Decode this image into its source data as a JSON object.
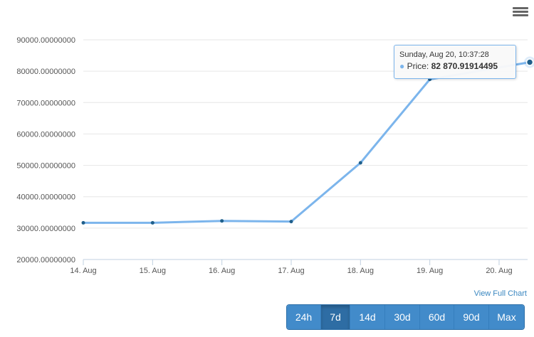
{
  "chart_data": {
    "type": "line",
    "x": [
      "14. Aug",
      "15. Aug",
      "16. Aug",
      "17. Aug",
      "18. Aug",
      "19. Aug",
      "20. Aug"
    ],
    "points": [
      {
        "x": "2023-08-14",
        "y": 31700
      },
      {
        "x": "2023-08-15",
        "y": 31700
      },
      {
        "x": "2023-08-16",
        "y": 32300
      },
      {
        "x": "2023-08-17",
        "y": 32100
      },
      {
        "x": "2023-08-18",
        "y": 50800
      },
      {
        "x": "2023-08-19",
        "y": 77400
      },
      {
        "x": "2023-08-20 10:37:28",
        "y": 82870.91914495
      }
    ],
    "y_ticks": [
      "20000.00000000",
      "30000.00000000",
      "40000.00000000",
      "50000.00000000",
      "60000.00000000",
      "70000.00000000",
      "80000.00000000",
      "90000.00000000"
    ],
    "ylim": [
      20000,
      90000
    ],
    "grid": true,
    "series_color": "#7cb5ec",
    "marker_color": "#1f5f8b"
  },
  "tooltip": {
    "date": "Sunday, Aug 20, 10:37:28",
    "label": "Price:",
    "value": "82 870.91914495"
  },
  "view_full_chart": "View Full Chart",
  "ranges": [
    {
      "label": "24h",
      "active": false
    },
    {
      "label": "7d",
      "active": true
    },
    {
      "label": "14d",
      "active": false
    },
    {
      "label": "30d",
      "active": false
    },
    {
      "label": "60d",
      "active": false
    },
    {
      "label": "90d",
      "active": false
    },
    {
      "label": "Max",
      "active": false
    }
  ]
}
